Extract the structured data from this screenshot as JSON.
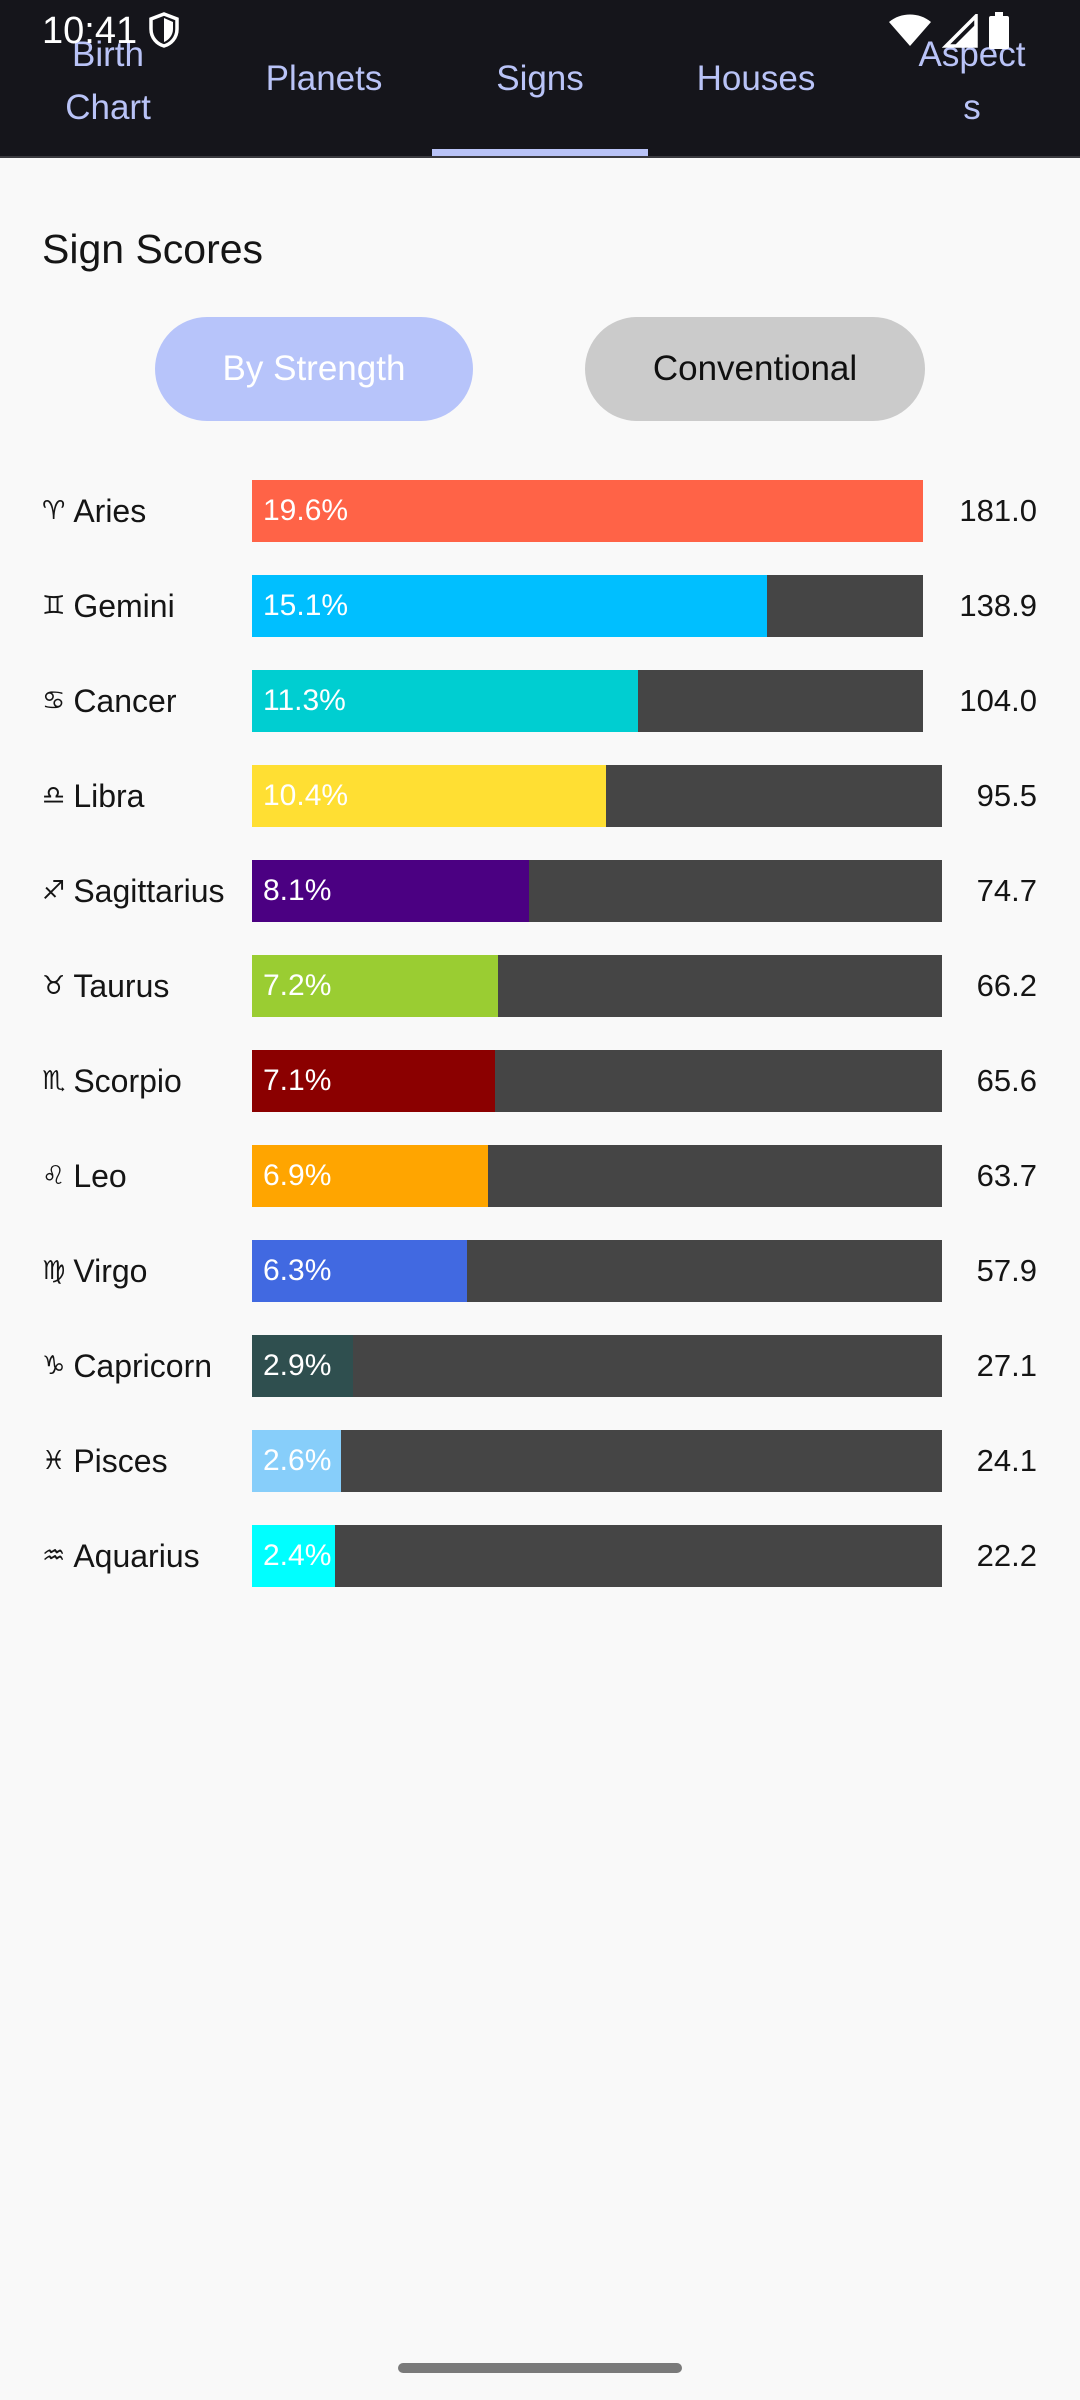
{
  "status_bar": {
    "time": "10:41",
    "icons": [
      "shield-icon",
      "wifi-icon",
      "cell-signal-icon",
      "battery-icon"
    ]
  },
  "tabs": [
    {
      "label": "Birth Chart",
      "selected": false
    },
    {
      "label": "Planets",
      "selected": false
    },
    {
      "label": "Signs",
      "selected": true
    },
    {
      "label": "Houses",
      "selected": false
    },
    {
      "label": "Aspects",
      "selected": false
    }
  ],
  "section": {
    "title": "Sign Scores"
  },
  "sort_buttons": {
    "by_strength": "By Strength",
    "conventional": "Conventional",
    "active": "by_strength"
  },
  "colors": {
    "topbar_bg": "#15151b",
    "accent": "#b9c3f7",
    "bar_track": "#454545",
    "page_bg": "#f9f9f9"
  },
  "signs": [
    {
      "glyph": "♈",
      "name": "Aries",
      "percent": "19.6%",
      "score": "181.0",
      "fraction": 1.0,
      "color": "#ff6347"
    },
    {
      "glyph": "♊",
      "name": "Gemini",
      "percent": "15.1%",
      "score": "138.9",
      "fraction": 0.767,
      "color": "#00bfff"
    },
    {
      "glyph": "♋",
      "name": "Cancer",
      "percent": "11.3%",
      "score": "104.0",
      "fraction": 0.575,
      "color": "#00ced1"
    },
    {
      "glyph": "♎",
      "name": "Libra",
      "percent": "10.4%",
      "score": "95.5",
      "fraction": 0.528,
      "color": "#ffdf33"
    },
    {
      "glyph": "♐",
      "name": "Sagittarius",
      "percent": "8.1%",
      "score": "74.7",
      "fraction": 0.413,
      "color": "#4b0082"
    },
    {
      "glyph": "♉",
      "name": "Taurus",
      "percent": "7.2%",
      "score": "66.2",
      "fraction": 0.366,
      "color": "#9acd32"
    },
    {
      "glyph": "♏",
      "name": "Scorpio",
      "percent": "7.1%",
      "score": "65.6",
      "fraction": 0.362,
      "color": "#8b0000"
    },
    {
      "glyph": "♌",
      "name": "Leo",
      "percent": "6.9%",
      "score": "63.7",
      "fraction": 0.352,
      "color": "#ffa500"
    },
    {
      "glyph": "♍",
      "name": "Virgo",
      "percent": "6.3%",
      "score": "57.9",
      "fraction": 0.32,
      "color": "#4169e1"
    },
    {
      "glyph": "♑",
      "name": "Capricorn",
      "percent": "2.9%",
      "score": "27.1",
      "fraction": 0.15,
      "color": "#2f4f4f"
    },
    {
      "glyph": "♓",
      "name": "Pisces",
      "percent": "2.6%",
      "score": "24.1",
      "fraction": 0.133,
      "color": "#87cefa"
    },
    {
      "glyph": "♒",
      "name": "Aquarius",
      "percent": "2.4%",
      "score": "22.2",
      "fraction": 0.123,
      "color": "#00ffff"
    }
  ]
}
